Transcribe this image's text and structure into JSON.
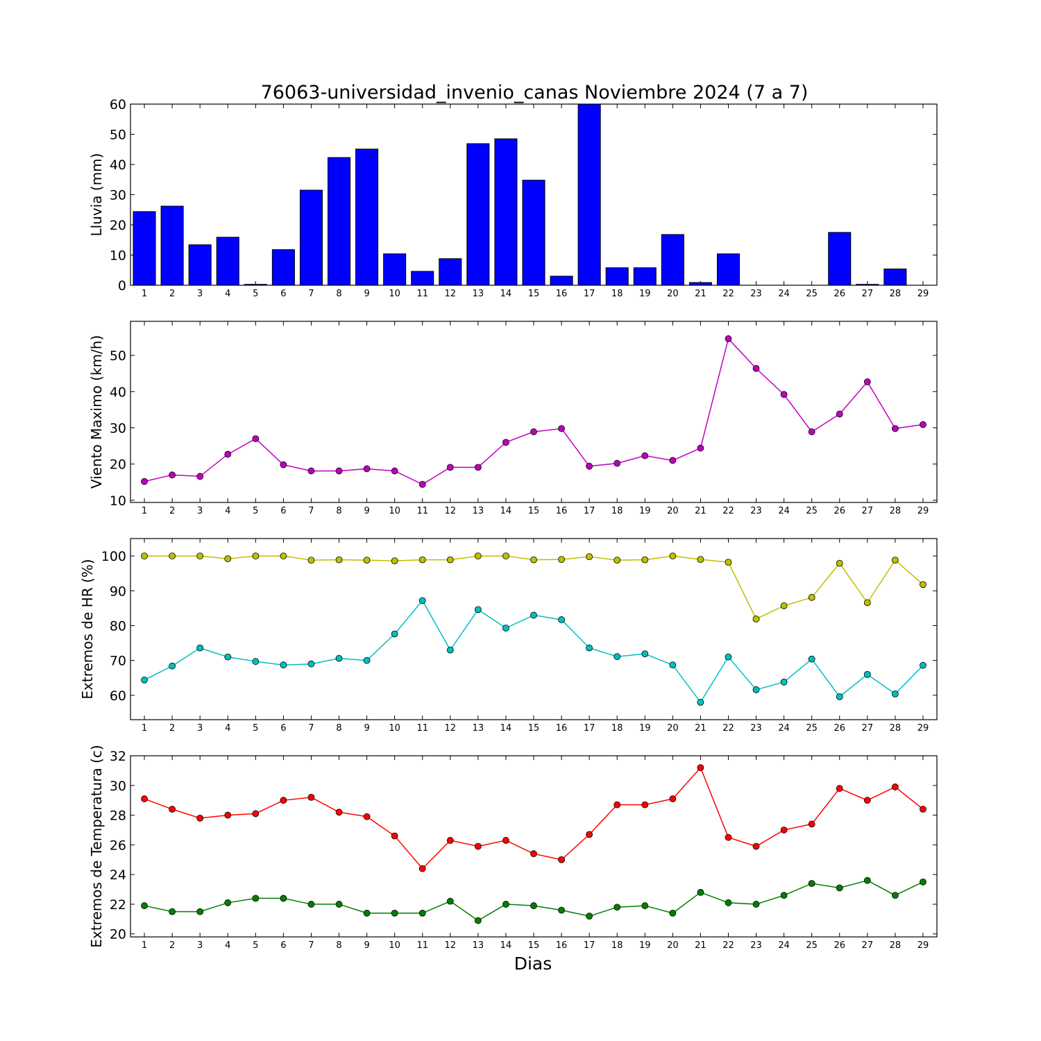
{
  "title": "76063-universidad_invenio_canas Noviembre 2024  (7 a 7)",
  "xlabel": "Dias",
  "chart_data": [
    {
      "type": "bar",
      "ylabel": "Lluvia (mm)",
      "ylim": [
        0,
        60
      ],
      "yticks": [
        0,
        10,
        20,
        30,
        40,
        50,
        60
      ],
      "categories": [
        "1",
        "2",
        "3",
        "4",
        "5",
        "6",
        "7",
        "8",
        "9",
        "10",
        "11",
        "12",
        "13",
        "14",
        "15",
        "16",
        "17",
        "18",
        "19",
        "20",
        "21",
        "22",
        "23",
        "24",
        "25",
        "26",
        "27",
        "28",
        "29"
      ],
      "series": [
        {
          "values": [
            24.4,
            26.2,
            13.4,
            15.9,
            0.3,
            11.8,
            31.5,
            42.3,
            45.1,
            10.4,
            4.6,
            8.8,
            46.9,
            48.5,
            34.8,
            3.0,
            60.0,
            5.8,
            5.8,
            16.8,
            0.9,
            10.4,
            0,
            0,
            0,
            17.5,
            0.3,
            5.4,
            0
          ],
          "color": "#0000ff"
        }
      ]
    },
    {
      "type": "line",
      "ylabel": "Viento Maximo (km/h)",
      "ylim": [
        9.4,
        59.4
      ],
      "yticks": [
        10,
        20,
        30,
        40,
        50
      ],
      "categories": [
        "1",
        "2",
        "3",
        "4",
        "5",
        "6",
        "7",
        "8",
        "9",
        "10",
        "11",
        "12",
        "13",
        "14",
        "15",
        "16",
        "17",
        "18",
        "19",
        "20",
        "21",
        "22",
        "23",
        "24",
        "25",
        "26",
        "27",
        "28",
        "29"
      ],
      "series": [
        {
          "values": [
            15.2,
            17.0,
            16.6,
            22.7,
            27.0,
            19.8,
            18.1,
            18.1,
            18.7,
            18.1,
            14.4,
            19.1,
            19.1,
            26.0,
            28.9,
            29.8,
            19.4,
            20.2,
            22.3,
            21.0,
            24.4,
            54.6,
            46.4,
            39.2,
            28.9,
            33.8,
            42.7,
            29.8,
            30.9
          ],
          "color": "#bf00bf"
        }
      ]
    },
    {
      "type": "line",
      "ylabel": "Extremos de HR (%)",
      "ylim": [
        53,
        105
      ],
      "yticks": [
        60,
        70,
        80,
        90,
        100
      ],
      "categories": [
        "1",
        "2",
        "3",
        "4",
        "5",
        "6",
        "7",
        "8",
        "9",
        "10",
        "11",
        "12",
        "13",
        "14",
        "15",
        "16",
        "17",
        "18",
        "19",
        "20",
        "21",
        "22",
        "23",
        "24",
        "25",
        "26",
        "27",
        "28",
        "29"
      ],
      "series": [
        {
          "values": [
            100,
            100,
            100,
            99.2,
            100,
            100,
            98.8,
            98.9,
            98.8,
            98.6,
            98.9,
            98.9,
            100,
            100,
            98.9,
            99.0,
            99.8,
            98.8,
            98.9,
            100,
            99.0,
            98.2,
            81.9,
            85.7,
            88.1,
            97.9,
            86.6,
            98.8,
            91.8
          ],
          "color": "#bfbf00"
        },
        {
          "values": [
            64.4,
            68.4,
            73.6,
            71.0,
            69.7,
            68.7,
            69.0,
            70.6,
            70.0,
            77.6,
            87.2,
            73.0,
            84.6,
            79.3,
            83.0,
            81.7,
            73.6,
            71.1,
            71.9,
            68.7,
            58.0,
            71.0,
            61.6,
            63.8,
            70.4,
            59.6,
            66.0,
            60.4,
            68.6
          ],
          "color": "#00bfbf"
        }
      ]
    },
    {
      "type": "line",
      "ylabel": "Extremos de Temperatura (c)",
      "ylim": [
        19.8,
        32
      ],
      "yticks": [
        20,
        22,
        24,
        26,
        28,
        30,
        32
      ],
      "categories": [
        "1",
        "2",
        "3",
        "4",
        "5",
        "6",
        "7",
        "8",
        "9",
        "10",
        "11",
        "12",
        "13",
        "14",
        "15",
        "16",
        "17",
        "18",
        "19",
        "20",
        "21",
        "22",
        "23",
        "24",
        "25",
        "26",
        "27",
        "28",
        "29"
      ],
      "series": [
        {
          "values": [
            29.1,
            28.4,
            27.8,
            28.0,
            28.1,
            29.0,
            29.2,
            28.2,
            27.9,
            26.6,
            24.4,
            26.3,
            25.9,
            26.3,
            25.4,
            25.0,
            26.7,
            28.7,
            28.7,
            29.1,
            31.2,
            26.5,
            25.9,
            27.0,
            27.4,
            29.8,
            29.0,
            29.9,
            28.4
          ],
          "color": "#ff0000"
        },
        {
          "values": [
            21.9,
            21.5,
            21.5,
            22.1,
            22.4,
            22.4,
            22.0,
            22.0,
            21.4,
            21.4,
            21.4,
            22.2,
            20.9,
            22.0,
            21.9,
            21.6,
            21.2,
            21.8,
            21.9,
            21.4,
            22.8,
            22.1,
            22.0,
            22.6,
            23.4,
            23.1,
            23.6,
            22.6,
            23.5
          ],
          "color": "#007f00"
        }
      ]
    }
  ]
}
